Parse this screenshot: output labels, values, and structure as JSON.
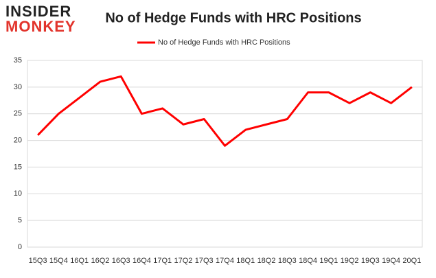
{
  "logo": {
    "line1": "INSIDER",
    "line2": "MONKEY"
  },
  "chart_data": {
    "type": "line",
    "title": "No of Hedge Funds with HRC Positions",
    "categories": [
      "15Q3",
      "15Q4",
      "16Q1",
      "16Q2",
      "16Q3",
      "16Q4",
      "17Q1",
      "17Q2",
      "17Q3",
      "17Q4",
      "18Q1",
      "18Q2",
      "18Q3",
      "18Q4",
      "19Q1",
      "19Q2",
      "19Q3",
      "19Q4",
      "20Q1"
    ],
    "series": [
      {
        "name": "No of Hedge Funds with HRC Positions",
        "color": "#ff0000",
        "values": [
          21,
          25,
          28,
          31,
          32,
          25,
          26,
          23,
          24,
          19,
          22,
          23,
          24,
          29,
          29,
          27,
          29,
          27,
          30
        ]
      }
    ],
    "ylim": [
      0,
      35
    ],
    "yticks": [
      0,
      5,
      10,
      15,
      20,
      25,
      30,
      35
    ],
    "grid": true,
    "legend": "top"
  }
}
